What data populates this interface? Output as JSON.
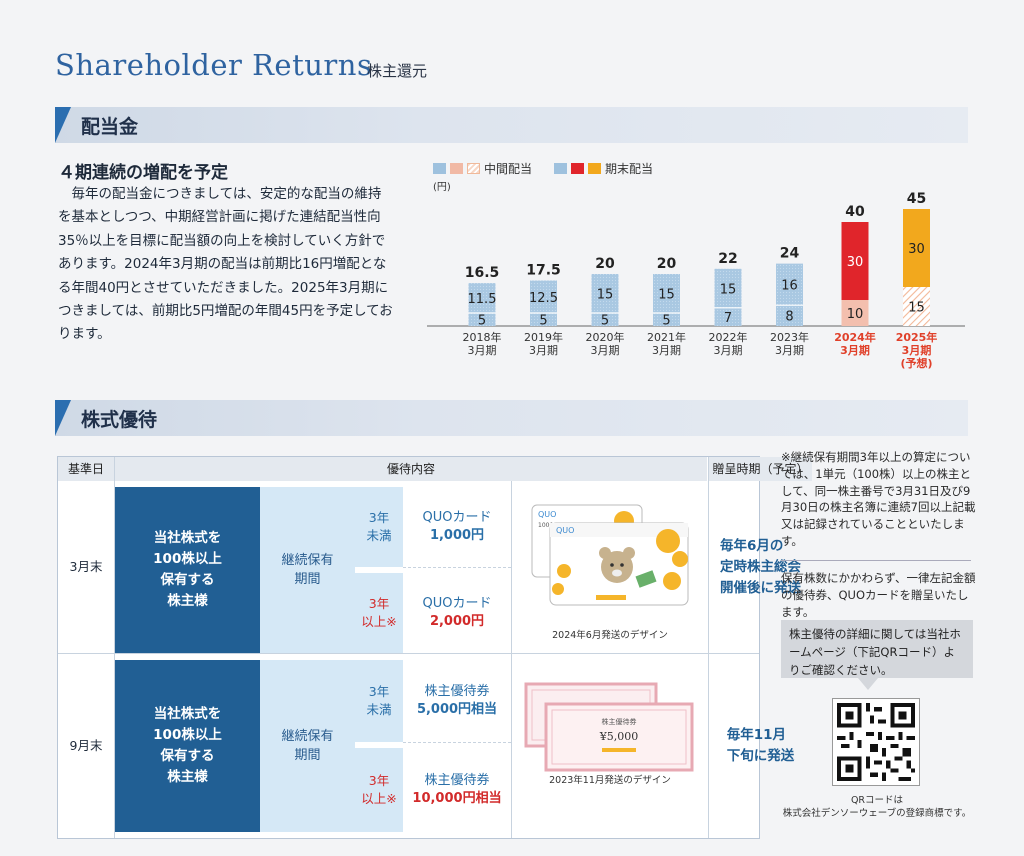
{
  "header": {
    "title": "Shareholder Returns",
    "title_jp": "株主還元"
  },
  "dividend": {
    "section_label": "配当金",
    "subhead": "４期連続の増配を予定",
    "paragraph": "毎年の配当金につきましては、安定的な配当の維持を基本としつつ、中期経営計画に掲げた連結配当性向35％以上を目標に配当額の向上を検討していく方針であります。2024年3月期の配当は前期比16円増配となる年間40円とさせていただきました。2025年3月期につきましては、前期比5円増配の年間45円を予定しております。",
    "legend_interim": "中間配当",
    "legend_final": "期末配当",
    "unit": "(円)"
  },
  "chart_data": {
    "type": "bar",
    "stacked": true,
    "categories": [
      "2018年3月期",
      "2019年3月期",
      "2020年3月期",
      "2021年3月期",
      "2022年3月期",
      "2023年3月期",
      "2024年3月期",
      "2025年3月期(予想)"
    ],
    "category_lines": [
      [
        "2018年",
        "3月期"
      ],
      [
        "2019年",
        "3月期"
      ],
      [
        "2020年",
        "3月期"
      ],
      [
        "2021年",
        "3月期"
      ],
      [
        "2022年",
        "3月期"
      ],
      [
        "2023年",
        "3月期"
      ],
      [
        "2024年",
        "3月期"
      ],
      [
        "2025年",
        "3月期",
        "(予想)"
      ]
    ],
    "series": [
      {
        "name": "中間配当",
        "values": [
          5,
          5,
          5,
          5,
          7,
          8,
          10,
          15
        ]
      },
      {
        "name": "期末配当",
        "values": [
          11.5,
          12.5,
          15,
          15,
          15,
          16,
          30,
          30
        ]
      }
    ],
    "totals": [
      16.5,
      17.5,
      20,
      20,
      22,
      24,
      40,
      45
    ],
    "total_labels": [
      "16.5",
      "17.5",
      "20",
      "20",
      "22",
      "24",
      "40",
      "45"
    ],
    "interim_labels": [
      "5",
      "5",
      "5",
      "5",
      "7",
      "8",
      "10",
      "15"
    ],
    "final_labels": [
      "11.5",
      "12.5",
      "15",
      "15",
      "15",
      "16",
      "30",
      "30"
    ],
    "ylabel": "(円)",
    "ylim": [
      0,
      45
    ],
    "colors": {
      "interim_past": "#a9c8e2",
      "final_past": "#a9c8e2",
      "interim_2024": "#f3bfae",
      "final_2024": "#e0252b",
      "interim_2025": "#f7d7c6",
      "final_2025": "#f2a81d",
      "highlight_label": "#e0402a"
    }
  },
  "benefits": {
    "section_label": "株式優待",
    "headers": {
      "date": "基準日",
      "content": "優待内容",
      "timing": "贈呈時期（予定）"
    },
    "rows": [
      {
        "date": "3月末",
        "holder": "当社株式を100株以上保有する株主様",
        "holder_lines": [
          "当社株式を",
          "100株以上",
          "保有する",
          "株主様"
        ],
        "period_lines": [
          "継続保有",
          "期間"
        ],
        "tier1": {
          "years": [
            "3年",
            "未満"
          ],
          "item": "QUOカード",
          "amount": "1,000円"
        },
        "tier2": {
          "years": [
            "3年",
            "以上※"
          ],
          "item": "QUOカード",
          "amount": "2,000円"
        },
        "image_caption": "2024年6月発送のデザイン",
        "card_text": "QUO",
        "card_value": "1000",
        "timing_lines": [
          "毎年6月の",
          "定時株主総会",
          "開催後に発送"
        ]
      },
      {
        "date": "9月末",
        "holder": "当社株式を100株以上保有する株主様",
        "holder_lines": [
          "当社株式を",
          "100株以上",
          "保有する",
          "株主様"
        ],
        "period_lines": [
          "継続保有",
          "期間"
        ],
        "tier1": {
          "years": [
            "3年",
            "未満"
          ],
          "item": "株主優待券",
          "amount": "5,000円相当"
        },
        "tier2": {
          "years": [
            "3年",
            "以上※"
          ],
          "item": "株主優待券",
          "amount": "10,000円相当"
        },
        "image_caption": "2023年11月発送のデザイン",
        "voucher_title": "株主優待券",
        "voucher_value": "¥5,000",
        "timing_lines": [
          "毎年11月",
          "下旬に発送"
        ]
      }
    ],
    "note1": "※継続保有期間3年以上の算定については、1単元（100株）以上の株主として、同一株主番号で3月31日及び9月30日の株主名簿に連続7回以上記載又は記録されていることといたします。",
    "note2": "保有株数にかかわらず、一律左記金額の優待券、QUOカードを贈呈いたします。",
    "info_box": "株主優待の詳細に関しては当社ホームページ（下記QRコード）よりご確認ください。",
    "qr_caption_1": "QRコードは",
    "qr_caption_2": "株式会社デンソーウェーブの登録商標です。"
  }
}
